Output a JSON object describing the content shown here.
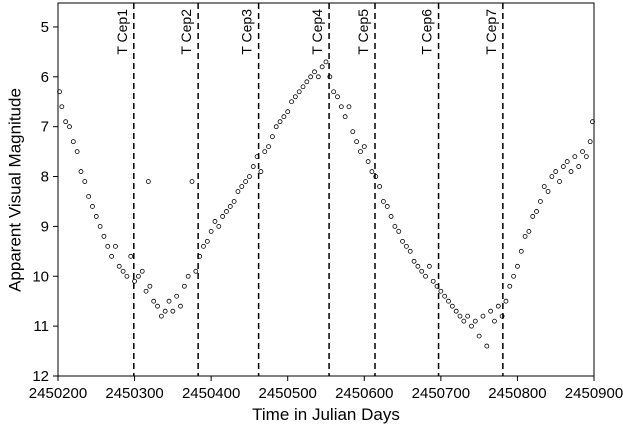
{
  "chart_data": {
    "type": "scatter",
    "x_label": "Time in Julian Days",
    "y_label": "Apparent Visual Magnitude",
    "xlim": [
      2450200,
      2450900
    ],
    "ylim": [
      12,
      4.52
    ],
    "xticks": [
      2450200,
      2450300,
      2450400,
      2450500,
      2450600,
      2450700,
      2450800,
      2450900
    ],
    "yticks": [
      5,
      6,
      7,
      8,
      9,
      10,
      11,
      12
    ],
    "color": "#000000",
    "markers": [
      {
        "x": 2450299,
        "label": "T Cep1"
      },
      {
        "x": 2450383,
        "label": "T Cep2"
      },
      {
        "x": 2450462,
        "label": "T Cep3"
      },
      {
        "x": 2450554,
        "label": "T Cep4"
      },
      {
        "x": 2450614,
        "label": "T Cep5"
      },
      {
        "x": 2450697,
        "label": "T Cep6"
      },
      {
        "x": 2450781,
        "label": "T Cep7"
      }
    ],
    "x": [
      2450202,
      2450205,
      2450210,
      2450215,
      2450220,
      2450225,
      2450230,
      2450235,
      2450240,
      2450245,
      2450250,
      2450255,
      2450260,
      2450265,
      2450270,
      2450275,
      2450280,
      2450285,
      2450290,
      2450295,
      2450300,
      2450305,
      2450310,
      2450315,
      2450318,
      2450320,
      2450325,
      2450330,
      2450335,
      2450340,
      2450345,
      2450350,
      2450355,
      2450360,
      2450365,
      2450370,
      2450375,
      2450380,
      2450385,
      2450390,
      2450395,
      2450400,
      2450405,
      2450410,
      2450415,
      2450420,
      2450425,
      2450430,
      2450435,
      2450440,
      2450445,
      2450450,
      2450455,
      2450460,
      2450465,
      2450470,
      2450475,
      2450480,
      2450485,
      2450490,
      2450495,
      2450500,
      2450505,
      2450510,
      2450515,
      2450520,
      2450525,
      2450530,
      2450535,
      2450540,
      2450545,
      2450550,
      2450555,
      2450560,
      2450565,
      2450570,
      2450575,
      2450580,
      2450585,
      2450590,
      2450595,
      2450600,
      2450605,
      2450610,
      2450615,
      2450620,
      2450625,
      2450630,
      2450635,
      2450640,
      2450645,
      2450650,
      2450655,
      2450660,
      2450665,
      2450670,
      2450675,
      2450680,
      2450685,
      2450690,
      2450695,
      2450700,
      2450705,
      2450710,
      2450715,
      2450720,
      2450725,
      2450730,
      2450735,
      2450740,
      2450745,
      2450750,
      2450755,
      2450760,
      2450765,
      2450770,
      2450775,
      2450780,
      2450785,
      2450790,
      2450795,
      2450800,
      2450805,
      2450810,
      2450815,
      2450820,
      2450825,
      2450830,
      2450835,
      2450840,
      2450845,
      2450850,
      2450855,
      2450860,
      2450865,
      2450870,
      2450875,
      2450880,
      2450885,
      2450890,
      2450895,
      2450898
    ],
    "values": [
      6.3,
      6.6,
      6.9,
      7.0,
      7.3,
      7.5,
      7.9,
      8.1,
      8.4,
      8.6,
      8.8,
      9.0,
      9.2,
      9.4,
      9.6,
      9.4,
      9.8,
      9.9,
      10.0,
      9.6,
      10.1,
      10.0,
      9.9,
      10.3,
      8.1,
      10.2,
      10.5,
      10.6,
      10.8,
      10.7,
      10.5,
      10.7,
      10.4,
      10.6,
      10.2,
      10.0,
      8.1,
      9.9,
      9.6,
      9.4,
      9.3,
      9.1,
      8.9,
      9.0,
      8.8,
      8.7,
      8.6,
      8.5,
      8.3,
      8.2,
      8.1,
      8.0,
      7.8,
      7.6,
      7.9,
      7.5,
      7.4,
      7.2,
      7.0,
      6.9,
      6.8,
      6.7,
      6.5,
      6.4,
      6.3,
      6.2,
      6.1,
      6.0,
      5.9,
      6.0,
      5.8,
      5.7,
      6.0,
      6.3,
      6.4,
      6.6,
      6.8,
      6.6,
      7.1,
      7.3,
      7.5,
      7.4,
      7.7,
      7.9,
      8.0,
      8.2,
      8.5,
      8.6,
      8.8,
      9.0,
      9.1,
      9.3,
      9.4,
      9.5,
      9.7,
      9.8,
      9.9,
      10.0,
      9.8,
      10.1,
      10.2,
      10.3,
      10.4,
      10.5,
      10.6,
      10.7,
      10.8,
      10.9,
      10.8,
      11.0,
      10.9,
      11.2,
      10.8,
      11.4,
      10.7,
      10.9,
      10.6,
      10.8,
      10.5,
      10.2,
      10.0,
      9.8,
      9.5,
      9.2,
      9.1,
      8.8,
      8.7,
      8.5,
      8.2,
      8.3,
      8.0,
      7.9,
      8.1,
      7.8,
      7.7,
      7.9,
      7.6,
      7.8,
      7.5,
      7.6,
      7.3,
      6.9
    ]
  }
}
